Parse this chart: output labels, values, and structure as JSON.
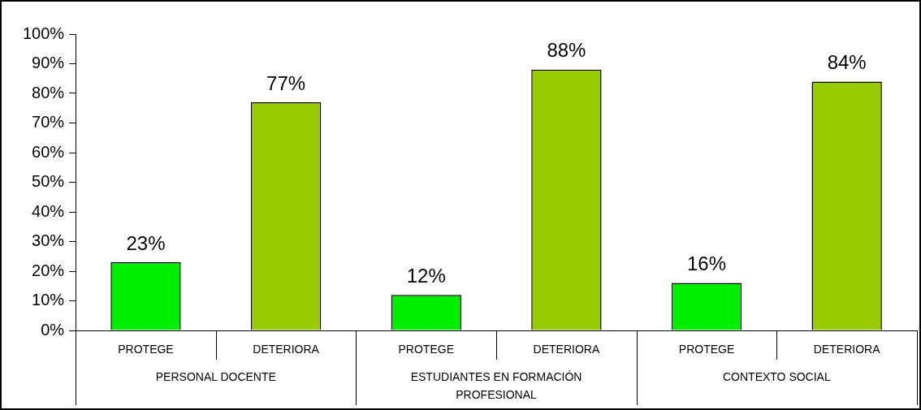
{
  "chart_data": {
    "type": "bar",
    "categories": [
      "PROTEGE",
      "DETERIORA",
      "PROTEGE",
      "DETERIORA",
      "PROTEGE",
      "DETERIORA"
    ],
    "values": [
      23,
      77,
      12,
      88,
      16,
      84
    ],
    "colors": [
      "#00ee00",
      "#99cc00",
      "#00ee00",
      "#99cc00",
      "#00ee00",
      "#99cc00"
    ],
    "value_labels": [
      "23%",
      "77%",
      "12%",
      "88%",
      "16%",
      "84%"
    ],
    "annotations": [
      "PERSONAL DOCENTE",
      "ESTUDIANTES EN FORMACIÓN PROFESIONAL",
      "CONTEXTO SOCIAL"
    ],
    "ylim": [
      0,
      100
    ],
    "yticks": [
      {
        "value": 0,
        "label": "0%"
      },
      {
        "value": 10,
        "label": "10%"
      },
      {
        "value": 20,
        "label": "20%"
      },
      {
        "value": 30,
        "label": "30%"
      },
      {
        "value": 40,
        "label": "40%"
      },
      {
        "value": 50,
        "label": "50%"
      },
      {
        "value": 60,
        "label": "60%"
      },
      {
        "value": 70,
        "label": "70%"
      },
      {
        "value": 80,
        "label": "80%"
      },
      {
        "value": 90,
        "label": "90%"
      },
      {
        "value": 100,
        "label": "100%"
      }
    ],
    "grid": false,
    "legend": false
  }
}
